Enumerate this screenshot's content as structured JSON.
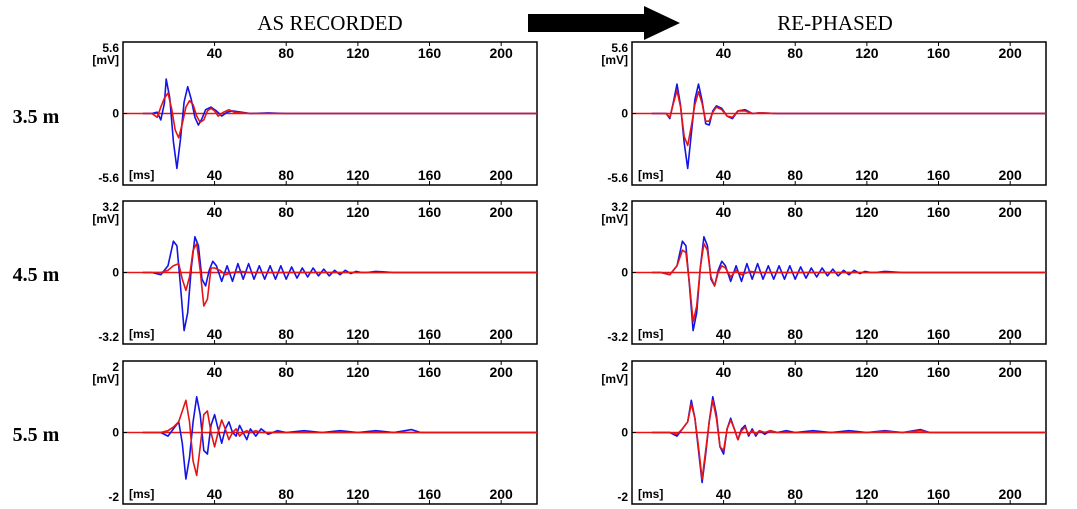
{
  "titles": {
    "left": "AS RECORDED",
    "right": "RE-PHASED"
  },
  "arrow_icon": "right-arrow-icon",
  "row_labels": [
    "3.5 m",
    "4.5 m",
    "5.5 m"
  ],
  "units": {
    "y": "[mV]",
    "x": "[ms]"
  },
  "colors": {
    "trace_blue": "#1414e6",
    "trace_red": "#e61414",
    "axis": "#000000"
  },
  "chart_data": [
    {
      "type": "line",
      "panel": "as-recorded-3.5m",
      "xlim": [
        -10,
        220
      ],
      "ylim": [
        -5.6,
        5.6
      ],
      "x_ticks": [
        40,
        80,
        120,
        160,
        200
      ],
      "y_ticks": [
        "5.6",
        "0",
        "-5.6"
      ],
      "series": [
        {
          "color": "#1414e6",
          "x": [
            0,
            5,
            8,
            10,
            12,
            13,
            15,
            17,
            19,
            21,
            23,
            25,
            27,
            29,
            31,
            33,
            35,
            38,
            41,
            44,
            47,
            50,
            55,
            60,
            70,
            80,
            100,
            220
          ],
          "y": [
            0,
            0,
            0.1,
            -0.5,
            0.8,
            2.7,
            1.2,
            -2.2,
            -4.3,
            -2.0,
            0.9,
            2.1,
            1.1,
            -0.3,
            -0.9,
            -0.4,
            0.3,
            0.5,
            0.2,
            -0.2,
            0.1,
            0.2,
            0.1,
            0,
            0.05,
            0,
            0,
            0
          ]
        },
        {
          "color": "#e61414",
          "x": [
            0,
            5,
            8,
            10,
            12,
            14,
            16,
            18,
            20,
            22,
            24,
            26,
            28,
            30,
            32,
            34,
            36,
            38,
            40,
            42,
            45,
            48,
            51,
            55,
            60,
            70,
            80,
            220
          ],
          "y": [
            0,
            0,
            -0.3,
            0.5,
            1.2,
            1.6,
            0.4,
            -1.3,
            -1.9,
            -0.8,
            0.5,
            1.0,
            0.7,
            -0.2,
            -0.7,
            -0.5,
            0.2,
            0.4,
            0.2,
            -0.2,
            0.1,
            0.3,
            0.1,
            0.05,
            0,
            0,
            0,
            0
          ]
        }
      ]
    },
    {
      "type": "line",
      "panel": "re-phased-3.5m",
      "xlim": [
        -10,
        220
      ],
      "ylim": [
        -5.6,
        5.6
      ],
      "x_ticks": [
        40,
        80,
        120,
        160,
        200
      ],
      "y_ticks": [
        "5.6",
        "0",
        "-5.6"
      ],
      "series": [
        {
          "color": "#1414e6",
          "x": [
            0,
            5,
            8,
            10,
            12,
            14,
            16,
            18,
            20,
            22,
            24,
            26,
            28,
            30,
            32,
            34,
            36,
            39,
            42,
            45,
            48,
            52,
            56,
            60,
            70,
            80,
            220
          ],
          "y": [
            0,
            0,
            0,
            -0.4,
            0.9,
            2.3,
            0.6,
            -2.3,
            -4.3,
            -1.6,
            1.1,
            2.3,
            1.0,
            -0.8,
            -0.9,
            0.2,
            0.6,
            0.4,
            -0.2,
            -0.4,
            0.2,
            0.3,
            0,
            0.05,
            0,
            0,
            0
          ]
        },
        {
          "color": "#e61414",
          "x": [
            0,
            5,
            8,
            10,
            12,
            14,
            16,
            18,
            20,
            22,
            24,
            26,
            28,
            30,
            32,
            34,
            36,
            39,
            42,
            45,
            48,
            52,
            56,
            60,
            70,
            80,
            220
          ],
          "y": [
            0,
            0,
            0,
            -0.3,
            0.8,
            1.8,
            0.5,
            -1.8,
            -2.5,
            -1.0,
            0.7,
            1.7,
            0.8,
            -0.6,
            -0.6,
            0.1,
            0.5,
            0.3,
            -0.2,
            -0.3,
            0.2,
            0.2,
            0,
            0.05,
            0,
            0,
            0
          ]
        }
      ]
    },
    {
      "type": "line",
      "panel": "as-recorded-4.5m",
      "xlim": [
        -10,
        220
      ],
      "ylim": [
        -3.2,
        3.2
      ],
      "x_ticks": [
        40,
        80,
        120,
        160,
        200
      ],
      "y_ticks": [
        "3.2",
        "0",
        "-3.2"
      ],
      "series": [
        {
          "color": "#1414e6",
          "x": [
            0,
            5,
            10,
            14,
            17,
            19,
            21,
            23,
            25,
            27,
            29,
            31,
            33,
            35,
            37,
            39,
            41,
            44,
            47,
            50,
            53,
            56,
            59,
            62,
            65,
            68,
            71,
            74,
            77,
            80,
            83,
            86,
            89,
            92,
            95,
            98,
            101,
            104,
            107,
            110,
            113,
            116,
            119,
            122,
            125,
            130,
            140,
            150,
            160,
            220
          ],
          "y": [
            0,
            0,
            -0.1,
            0.3,
            1.4,
            1.2,
            -0.6,
            -2.6,
            -1.8,
            0.2,
            1.6,
            1.2,
            -0.3,
            -0.6,
            0.1,
            0.5,
            0.3,
            -0.4,
            0.3,
            -0.4,
            0.4,
            -0.3,
            0.4,
            -0.3,
            0.3,
            -0.3,
            0.3,
            -0.3,
            0.3,
            -0.3,
            0.25,
            -0.25,
            0.2,
            -0.2,
            0.2,
            -0.15,
            0.15,
            -0.15,
            0.1,
            -0.1,
            0.1,
            -0.05,
            0.05,
            0,
            0,
            0.05,
            0,
            0,
            0,
            0
          ]
        },
        {
          "color": "#e61414",
          "x": [
            0,
            5,
            10,
            14,
            17,
            20,
            22,
            24,
            26,
            28,
            30,
            32,
            34,
            36,
            38,
            40,
            43,
            46,
            50,
            55,
            60,
            70,
            80,
            90,
            220
          ],
          "y": [
            0,
            0,
            0,
            0.1,
            0.3,
            0.4,
            -0.3,
            -0.8,
            -0.2,
            1.0,
            1.3,
            0.1,
            -1.5,
            -1.2,
            0.2,
            0.2,
            0.1,
            -0.1,
            0,
            0.05,
            0,
            0,
            0,
            0,
            0
          ]
        }
      ]
    },
    {
      "type": "line",
      "panel": "re-phased-4.5m",
      "xlim": [
        -10,
        220
      ],
      "ylim": [
        -3.2,
        3.2
      ],
      "x_ticks": [
        40,
        80,
        120,
        160,
        200
      ],
      "y_ticks": [
        "3.2",
        "0",
        "-3.2"
      ],
      "series": [
        {
          "color": "#1414e6",
          "x": [
            0,
            5,
            10,
            14,
            17,
            19,
            21,
            23,
            25,
            27,
            29,
            31,
            33,
            35,
            37,
            39,
            41,
            44,
            47,
            50,
            53,
            56,
            59,
            62,
            65,
            68,
            71,
            74,
            77,
            80,
            83,
            86,
            89,
            92,
            95,
            98,
            101,
            104,
            107,
            110,
            113,
            116,
            119,
            122,
            125,
            130,
            140,
            150,
            160,
            220
          ],
          "y": [
            0,
            0,
            -0.1,
            0.3,
            1.4,
            1.2,
            -0.6,
            -2.6,
            -1.8,
            0.2,
            1.6,
            1.2,
            -0.3,
            -0.6,
            0.1,
            0.5,
            0.3,
            -0.4,
            0.3,
            -0.4,
            0.4,
            -0.3,
            0.4,
            -0.3,
            0.3,
            -0.3,
            0.3,
            -0.3,
            0.3,
            -0.3,
            0.25,
            -0.25,
            0.2,
            -0.2,
            0.2,
            -0.15,
            0.15,
            -0.15,
            0.1,
            -0.1,
            0.1,
            -0.05,
            0.05,
            0,
            0,
            0.05,
            0,
            0,
            0,
            0
          ]
        },
        {
          "color": "#e61414",
          "x": [
            0,
            5,
            10,
            14,
            17,
            19,
            21,
            23,
            25,
            27,
            29,
            31,
            33,
            35,
            37,
            39,
            41,
            44,
            47,
            50,
            55,
            60,
            70,
            80,
            90,
            220
          ],
          "y": [
            0,
            0,
            -0.1,
            0.3,
            1.0,
            0.9,
            -0.5,
            -2.2,
            -1.5,
            0.2,
            1.3,
            1.0,
            -0.2,
            -0.6,
            0.0,
            0.3,
            0.2,
            -0.2,
            0.1,
            -0.1,
            0.05,
            0,
            0,
            0,
            0,
            0
          ]
        }
      ]
    },
    {
      "type": "line",
      "panel": "as-recorded-5.5m",
      "xlim": [
        -10,
        220
      ],
      "ylim": [
        -2,
        2
      ],
      "x_ticks": [
        40,
        80,
        120,
        160,
        200
      ],
      "y_ticks": [
        "2",
        "0",
        "-2"
      ],
      "series": [
        {
          "color": "#1414e6",
          "x": [
            0,
            5,
            10,
            14,
            17,
            20,
            22,
            24,
            26,
            28,
            30,
            32,
            34,
            36,
            38,
            40,
            42,
            44,
            46,
            48,
            50,
            52,
            54,
            56,
            58,
            60,
            63,
            66,
            70,
            75,
            80,
            90,
            100,
            110,
            120,
            130,
            140,
            150,
            155,
            160,
            170,
            220
          ],
          "y": [
            0,
            0,
            0,
            -0.1,
            0.1,
            0.3,
            -0.3,
            -1.3,
            -0.7,
            0.3,
            1.0,
            0.5,
            -0.5,
            -0.6,
            0.2,
            0.5,
            0.1,
            -0.3,
            0.1,
            0.3,
            0.0,
            -0.1,
            0.2,
            0.0,
            -0.2,
            0.1,
            -0.1,
            0.1,
            -0.05,
            0.05,
            0,
            0.05,
            0,
            0.05,
            0,
            0.05,
            0,
            0.08,
            0,
            0,
            0,
            0
          ]
        },
        {
          "color": "#e61414",
          "x": [
            0,
            5,
            10,
            14,
            17,
            20,
            22,
            24,
            26,
            28,
            30,
            32,
            34,
            36,
            38,
            40,
            42,
            44,
            46,
            48,
            50,
            52,
            54,
            56,
            58,
            60,
            63,
            66,
            70,
            75,
            80,
            90,
            100,
            110,
            120,
            220
          ],
          "y": [
            0,
            0,
            0,
            0.05,
            0.15,
            0.3,
            0.6,
            0.9,
            0.3,
            -0.8,
            -1.2,
            -0.4,
            0.5,
            0.6,
            0.0,
            -0.4,
            0.0,
            0.35,
            0.1,
            -0.2,
            0.0,
            0.1,
            -0.1,
            0.0,
            0.05,
            0.0,
            0.05,
            0,
            0,
            0,
            0,
            0,
            0,
            0,
            0,
            0
          ]
        }
      ]
    },
    {
      "type": "line",
      "panel": "re-phased-5.5m",
      "xlim": [
        -10,
        220
      ],
      "ylim": [
        -2,
        2
      ],
      "x_ticks": [
        40,
        80,
        120,
        160,
        200
      ],
      "y_ticks": [
        "2",
        "0",
        "-2"
      ],
      "series": [
        {
          "color": "#1414e6",
          "x": [
            0,
            5,
            10,
            14,
            17,
            20,
            22,
            24,
            26,
            28,
            30,
            32,
            34,
            36,
            38,
            40,
            42,
            44,
            46,
            48,
            50,
            52,
            54,
            56,
            58,
            60,
            63,
            66,
            70,
            75,
            80,
            90,
            100,
            110,
            120,
            130,
            140,
            150,
            155,
            160,
            170,
            220
          ],
          "y": [
            0,
            0,
            0,
            -0.1,
            0.1,
            0.3,
            0.9,
            0.4,
            -0.5,
            -1.4,
            -0.6,
            0.3,
            1.0,
            0.5,
            -0.4,
            -0.6,
            0.1,
            0.4,
            0.1,
            -0.2,
            0.1,
            0.2,
            -0.1,
            0.1,
            -0.1,
            0.05,
            -0.05,
            0.05,
            0,
            0.05,
            0,
            0.05,
            0,
            0.05,
            0,
            0.05,
            0,
            0.08,
            0,
            0,
            0,
            0
          ]
        },
        {
          "color": "#e61414",
          "x": [
            0,
            5,
            10,
            14,
            17,
            20,
            22,
            24,
            26,
            28,
            30,
            32,
            34,
            36,
            38,
            40,
            42,
            44,
            46,
            48,
            50,
            52,
            54,
            56,
            58,
            60,
            63,
            66,
            70,
            75,
            80,
            90,
            100,
            110,
            120,
            130,
            140,
            150,
            155,
            160,
            170,
            220
          ],
          "y": [
            0,
            0,
            0,
            -0.05,
            0.1,
            0.3,
            0.8,
            0.4,
            -0.4,
            -1.3,
            -0.5,
            0.3,
            0.9,
            0.4,
            -0.4,
            -0.5,
            0.1,
            0.35,
            0.1,
            -0.2,
            0.05,
            0.15,
            -0.05,
            0.05,
            -0.05,
            0.05,
            0,
            0.05,
            0,
            0,
            0,
            0,
            0,
            0,
            0,
            0.03,
            0,
            0.05,
            0,
            0,
            0,
            0
          ]
        }
      ]
    }
  ]
}
